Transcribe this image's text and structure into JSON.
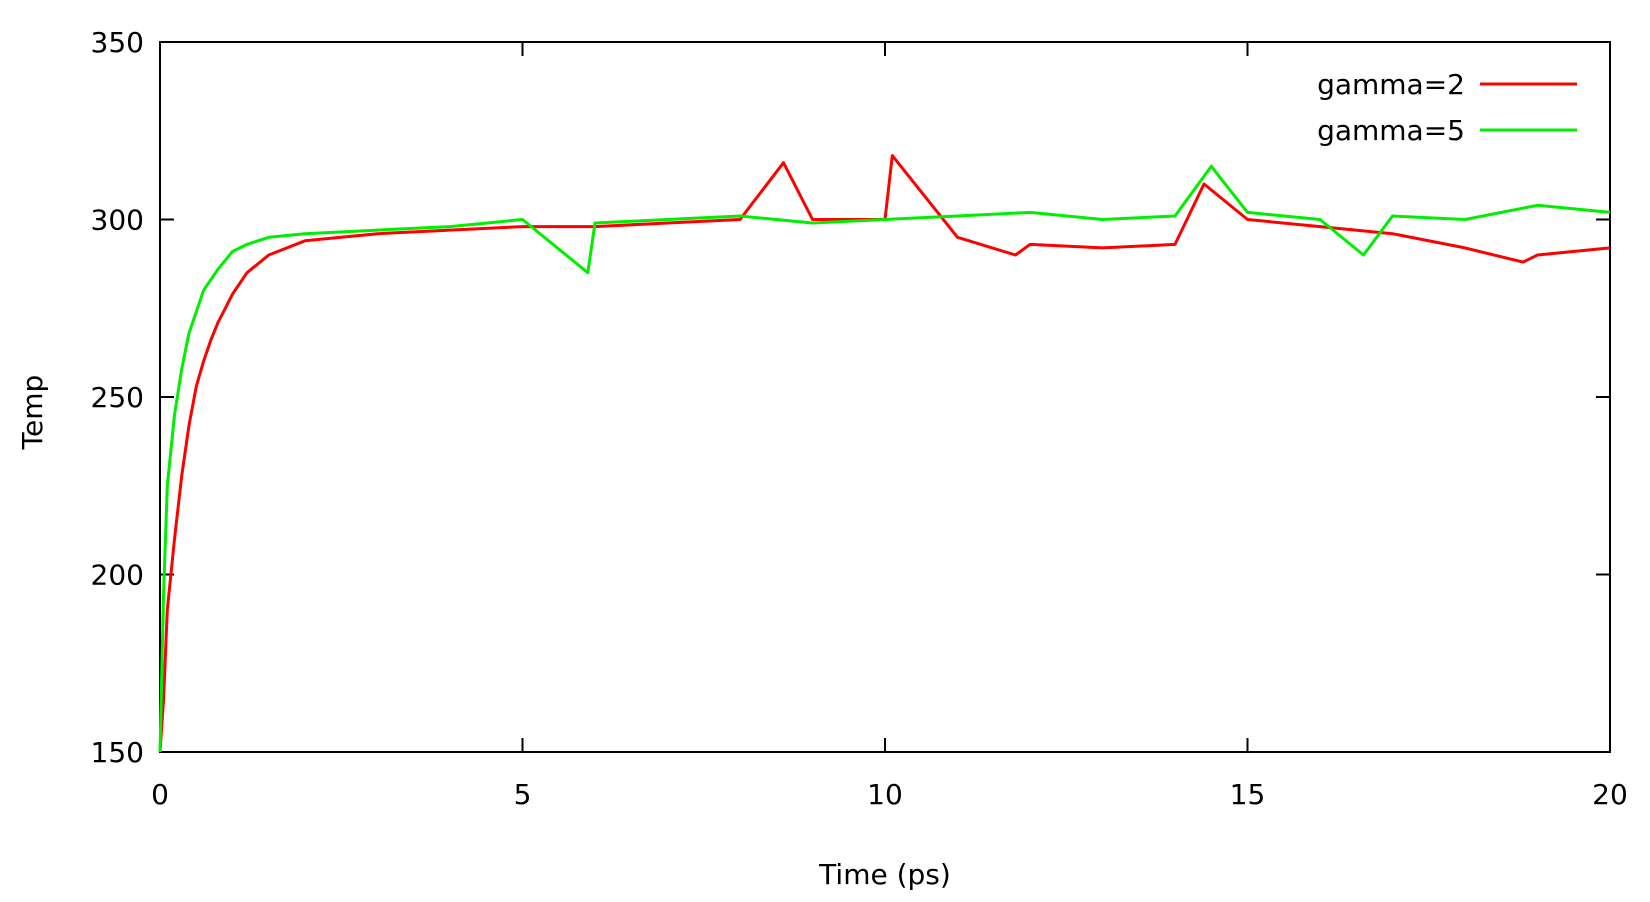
{
  "chart_data": {
    "type": "line",
    "title": "",
    "xlabel": "Time (ps)",
    "ylabel": "Temp",
    "xlim": [
      0,
      20
    ],
    "ylim": [
      150,
      350
    ],
    "xticks": [
      "0",
      "5",
      "10",
      "15",
      "20"
    ],
    "yticks": [
      "150",
      "200",
      "250",
      "300",
      "350"
    ],
    "grid": false,
    "legend_position": "top-right",
    "series": [
      {
        "name": "gamma=2",
        "color": "#ff0000",
        "x": [
          0,
          0.05,
          0.1,
          0.2,
          0.3,
          0.4,
          0.5,
          0.6,
          0.7,
          0.8,
          0.9,
          1.0,
          1.2,
          1.5,
          2,
          3,
          4,
          5,
          6,
          7,
          8,
          8.6,
          9,
          10,
          10.1,
          11,
          11.8,
          12,
          13,
          14,
          14.4,
          15,
          16,
          17,
          18,
          18.8,
          19,
          20
        ],
        "y": [
          150,
          165,
          190,
          210,
          228,
          242,
          253,
          260,
          266,
          271,
          275,
          279,
          285,
          290,
          294,
          296,
          297,
          298,
          298,
          299,
          300,
          316,
          300,
          300,
          318,
          295,
          290,
          293,
          292,
          293,
          310,
          300,
          298,
          296,
          292,
          288,
          290,
          292
        ]
      },
      {
        "name": "gamma=5",
        "color": "#00ee00",
        "x": [
          0,
          0.05,
          0.1,
          0.2,
          0.3,
          0.4,
          0.5,
          0.6,
          0.8,
          1.0,
          1.2,
          1.5,
          2,
          3,
          4,
          5,
          5.9,
          6,
          7,
          8,
          9,
          10,
          11,
          12,
          13,
          14,
          14.5,
          15,
          16,
          16.6,
          17,
          18,
          19,
          20
        ],
        "y": [
          150,
          195,
          225,
          245,
          258,
          268,
          274,
          280,
          286,
          291,
          293,
          295,
          296,
          297,
          298,
          300,
          285,
          299,
          300,
          301,
          299,
          300,
          301,
          302,
          300,
          301,
          315,
          302,
          300,
          290,
          301,
          300,
          304,
          302
        ]
      }
    ]
  }
}
